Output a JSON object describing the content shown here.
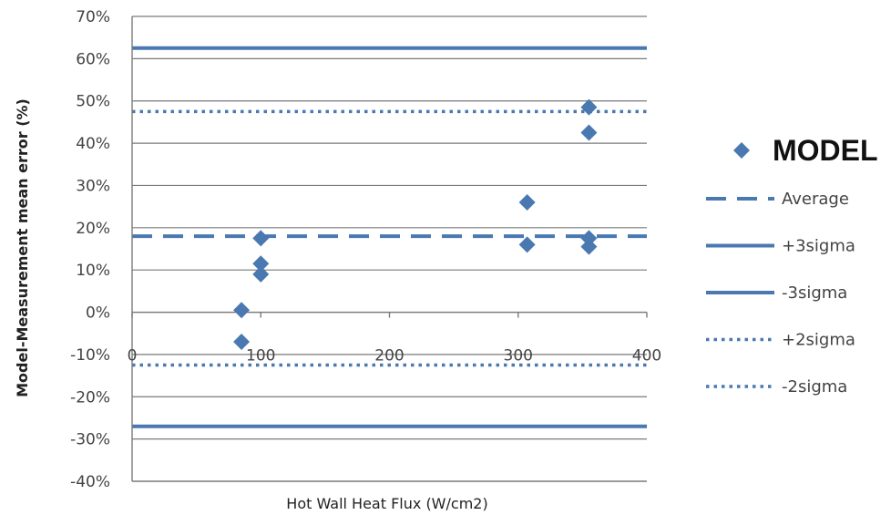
{
  "chart_data": {
    "type": "scatter",
    "xlabel": "Hot Wall Heat Flux (W/cm2)",
    "ylabel": "Model-Measurement mean error (%)",
    "xlim": [
      0,
      400
    ],
    "ylim": [
      -40,
      70
    ],
    "x_ticks": [
      "0",
      "100",
      "200",
      "300",
      "400"
    ],
    "y_ticks": [
      "-40%",
      "-30%",
      "-20%",
      "-10%",
      "0%",
      "10%",
      "20%",
      "30%",
      "40%",
      "50%",
      "60%",
      "70%"
    ],
    "grid": "horizontal",
    "legend_position": "right",
    "colors": {
      "series": "#4a78b0",
      "grid": "#7a7a7a"
    },
    "series": [
      {
        "name": "MODEL",
        "marker": "diamond",
        "points": [
          {
            "x": 85,
            "y": 0.5
          },
          {
            "x": 85,
            "y": -7
          },
          {
            "x": 100,
            "y": 17.5
          },
          {
            "x": 100,
            "y": 11.5
          },
          {
            "x": 100,
            "y": 9
          },
          {
            "x": 307,
            "y": 26
          },
          {
            "x": 307,
            "y": 16
          },
          {
            "x": 355,
            "y": 48.5
          },
          {
            "x": 355,
            "y": 42.5
          },
          {
            "x": 355,
            "y": 17.5
          },
          {
            "x": 355,
            "y": 15.5
          }
        ]
      }
    ],
    "reference_lines": [
      {
        "name": "Average",
        "y": 18,
        "style": "dashed"
      },
      {
        "name": "+3sigma",
        "y": 62.5,
        "style": "solid"
      },
      {
        "name": "-3sigma",
        "y": -27,
        "style": "solid"
      },
      {
        "name": "+2sigma",
        "y": 47.5,
        "style": "dotted"
      },
      {
        "name": "-2sigma",
        "y": -12.5,
        "style": "dotted"
      }
    ]
  }
}
